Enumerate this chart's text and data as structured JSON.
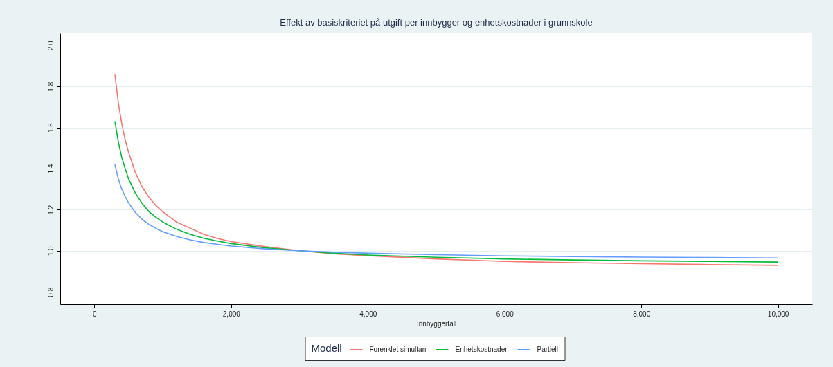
{
  "chart_data": {
    "type": "line",
    "title": "Effekt av basiskriteriet på utgift per innbygger og enhetskostnader i grunnskole",
    "xlabel": "Innbyggertall",
    "legend_title": "Modell",
    "x": [
      300,
      350,
      400,
      450,
      500,
      600,
      700,
      800,
      900,
      1000,
      1200,
      1400,
      1600,
      1800,
      2000,
      2500,
      3000,
      3500,
      4000,
      5000,
      6000,
      7000,
      8000,
      9000,
      10000
    ],
    "series": [
      {
        "name": "Forenklet simultan",
        "color": "#f8766d",
        "values": [
          1.86,
          1.72,
          1.62,
          1.54,
          1.48,
          1.38,
          1.31,
          1.26,
          1.22,
          1.19,
          1.14,
          1.11,
          1.08,
          1.06,
          1.045,
          1.02,
          1.0,
          0.985,
          0.976,
          0.96,
          0.948,
          0.942,
          0.937,
          0.933,
          0.929
        ]
      },
      {
        "name": "Enhetskostnader",
        "color": "#00ba38",
        "values": [
          1.63,
          1.53,
          1.455,
          1.4,
          1.35,
          1.28,
          1.23,
          1.19,
          1.163,
          1.14,
          1.105,
          1.08,
          1.061,
          1.047,
          1.035,
          1.014,
          1.0,
          0.988,
          0.979,
          0.968,
          0.96,
          0.955,
          0.951,
          0.948,
          0.945
        ]
      },
      {
        "name": "Partiell",
        "color": "#619cff",
        "values": [
          1.42,
          1.35,
          1.3,
          1.264,
          1.233,
          1.186,
          1.153,
          1.128,
          1.109,
          1.093,
          1.07,
          1.053,
          1.04,
          1.031,
          1.023,
          1.009,
          1.0,
          0.993,
          0.988,
          0.981,
          0.975,
          0.972,
          0.969,
          0.967,
          0.965
        ]
      }
    ],
    "xlim": [
      -500,
      10500
    ],
    "xticks": [
      0,
      {
        "value": 2000,
        "label": "2,000"
      },
      {
        "value": 4000,
        "label": "4,000"
      },
      {
        "value": 6000,
        "label": "6,000"
      },
      {
        "value": 8000,
        "label": "8,000"
      },
      {
        "value": 10000,
        "label": "10,000"
      }
    ],
    "ylim": [
      0.74,
      2.06
    ],
    "yticks": [
      0.8,
      {
        "value": 1,
        "label": "1.0"
      },
      1.2,
      1.4,
      1.6,
      1.8,
      {
        "value": 2,
        "label": "2.0"
      }
    ],
    "grid": "y",
    "legend": "bottom",
    "line_style": "solid"
  }
}
